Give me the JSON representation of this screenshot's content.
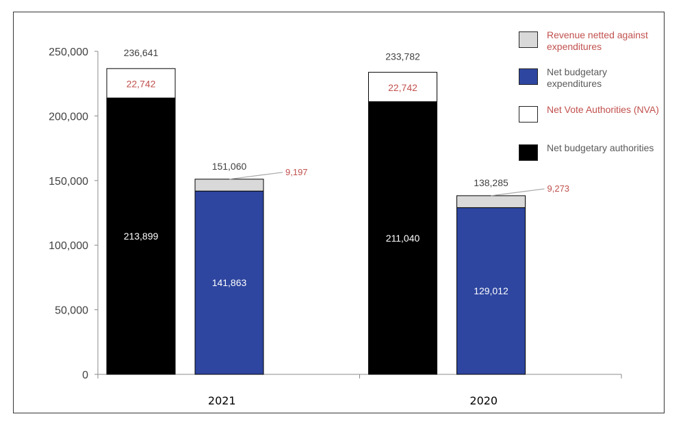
{
  "chart_data": {
    "type": "stacked-bar",
    "categories": [
      "2021",
      "2020"
    ],
    "ylim": [
      0,
      250000
    ],
    "yticks": [
      0,
      50000,
      100000,
      150000,
      200000,
      250000
    ],
    "ytick_labels": [
      "0",
      "50,000",
      "100,000",
      "150,000",
      "200,000",
      "250,000"
    ],
    "grid": false,
    "legend_position": "right",
    "groups": [
      {
        "category": "2021",
        "authorities": {
          "base": 213899,
          "base_label": "213,899",
          "nva": 22742,
          "nva_label": "22,742",
          "total_label": "236,641"
        },
        "expenditures": {
          "base": 141863,
          "base_label": "141,863",
          "revenue": 9197,
          "revenue_label": "9,197",
          "total_label": "151,060"
        }
      },
      {
        "category": "2020",
        "authorities": {
          "base": 211040,
          "base_label": "211,040",
          "nva": 22742,
          "nva_label": "22,742",
          "total_label": "233,782"
        },
        "expenditures": {
          "base": 129012,
          "base_label": "129,012",
          "revenue": 9273,
          "revenue_label": "9,273",
          "total_label": "138,285"
        }
      }
    ],
    "legend": [
      {
        "name": "Revenue netted against expenditures",
        "color": "#d9d9d9",
        "text_color": "#c0504d"
      },
      {
        "name": "Net budgetary expenditures",
        "color": "#2e46a0",
        "text_color": "#595959"
      },
      {
        "name": "Net Vote Authorities (NVA)",
        "color": "#ffffff",
        "text_color": "#c0504d"
      },
      {
        "name": "Net budgetary authorities",
        "color": "#000000",
        "text_color": "#595959"
      }
    ]
  }
}
